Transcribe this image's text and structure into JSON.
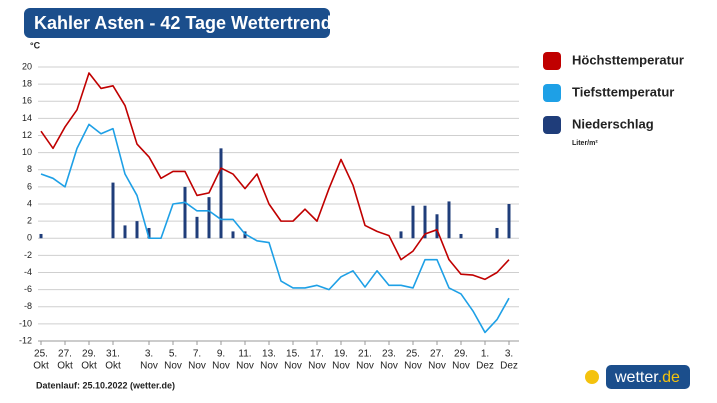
{
  "chart_data": {
    "type": "combo",
    "title": "Kahler Asten - 42 Tage Wettertrend",
    "y_unit": "°C",
    "categories": [
      "25.",
      null,
      "27.",
      null,
      "29.",
      null,
      "31.",
      null,
      null,
      "3.",
      null,
      "5.",
      null,
      "7.",
      null,
      "9.",
      null,
      "11.",
      null,
      "13.",
      null,
      "15.",
      null,
      "17.",
      null,
      "19.",
      null,
      "21.",
      null,
      "23.",
      null,
      "25.",
      null,
      "27.",
      null,
      "29.",
      null,
      "1.",
      null,
      "3."
    ],
    "category_months": [
      "Okt",
      null,
      "Okt",
      null,
      "Okt",
      null,
      "Okt",
      null,
      null,
      "Nov",
      null,
      "Nov",
      null,
      "Nov",
      null,
      "Nov",
      null,
      "Nov",
      null,
      "Nov",
      null,
      "Nov",
      null,
      "Nov",
      null,
      "Nov",
      null,
      "Nov",
      null,
      "Nov",
      null,
      "Nov",
      null,
      "Nov",
      null,
      "Nov",
      null,
      "Dez",
      null,
      "Dez"
    ],
    "series": [
      {
        "name": "Höchsttemperatur",
        "type": "line",
        "color": "#c00000",
        "values": [
          12.5,
          10.5,
          13,
          15,
          19.3,
          17.5,
          17.8,
          15.5,
          11,
          9.5,
          7,
          7.8,
          7.8,
          5,
          5.3,
          8.2,
          7.5,
          5.8,
          7.5,
          4,
          2,
          2,
          3.4,
          2,
          5.8,
          9.2,
          6.2,
          1.5,
          0.8,
          0.3,
          -2.5,
          -1.5,
          0.5,
          1,
          -2.5,
          -4.2,
          -4.3,
          -4.8,
          -4,
          -2.5
        ]
      },
      {
        "name": "Tiefsttemperatur",
        "type": "line",
        "color": "#1ea0e6",
        "values": [
          7.5,
          7,
          6,
          10.5,
          13.3,
          12.2,
          12.8,
          7.5,
          5,
          0,
          0,
          4,
          4.2,
          3.2,
          3.2,
          2.2,
          2.2,
          0.5,
          -0.3,
          -0.5,
          -5,
          -5.8,
          -5.8,
          -5.5,
          -6,
          -4.5,
          -3.8,
          -5.7,
          -3.8,
          -5.5,
          -5.5,
          -5.8,
          -2.5,
          -2.5,
          -5.8,
          -6.5,
          -8.5,
          -11,
          -9.5,
          -7
        ]
      },
      {
        "name": "Niederschlag",
        "unit": "Liter/m²",
        "type": "bar",
        "color": "#1f3d7a",
        "values": [
          0.5,
          0,
          0,
          0,
          0,
          0,
          6.5,
          1.5,
          2,
          1.2,
          0,
          0,
          6,
          2.5,
          4.8,
          10.5,
          0.8,
          0.8,
          0,
          0,
          0,
          0,
          0,
          0,
          0,
          0,
          0,
          0,
          0,
          0,
          0.8,
          3.8,
          3.8,
          2.8,
          4.3,
          0.5,
          0,
          0,
          1.2,
          4
        ]
      }
    ],
    "ylim": [
      -12,
      20
    ],
    "yticks": [
      -12,
      -10,
      -8,
      -6,
      -4,
      -2,
      0,
      2,
      4,
      6,
      8,
      10,
      12,
      14,
      16,
      18,
      20
    ],
    "grid": true,
    "footer": "Datenlauf: 25.10.2022 (wetter.de)",
    "logo": {
      "name": "wetter",
      "tld": ".de"
    }
  }
}
